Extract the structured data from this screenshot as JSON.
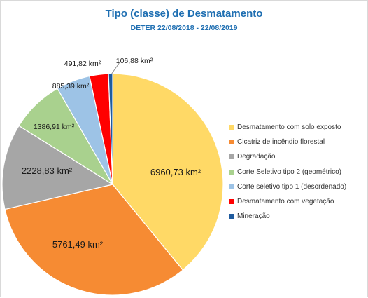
{
  "chart_data": {
    "type": "pie",
    "title": "Tipo  (classe) de Desmatamento",
    "subtitle": "DETER 22/08/2018 - 22/08/2019",
    "slices": [
      {
        "name": "Desmatamento com solo exposto",
        "value": 6960.73,
        "label": "6960,73 km²",
        "color": "#ffd966"
      },
      {
        "name": "Cicatriz de incêndio florestal",
        "value": 5761.49,
        "label": "5761,49 km²",
        "color": "#f68b33"
      },
      {
        "name": "Degradação",
        "value": 2228.83,
        "label": "2228,83 km²",
        "color": "#a6a6a6"
      },
      {
        "name": "Corte Seletivo tipo 2 (geométrico)",
        "value": 1386.91,
        "label": "1386,91 km²",
        "color": "#a9d18e"
      },
      {
        "name": "Corte seletivo tipo 1 (desordenado)",
        "value": 885.39,
        "label": "885,39 km²",
        "color": "#9dc3e6"
      },
      {
        "name": "Desmatamento com vegetação",
        "value": 491.82,
        "label": "491,82 km²",
        "color": "#ff0000"
      },
      {
        "name": "Mineração",
        "value": 106.88,
        "label": "106,88 km²",
        "color": "#1f5b9e"
      }
    ],
    "legend_position": "right"
  }
}
